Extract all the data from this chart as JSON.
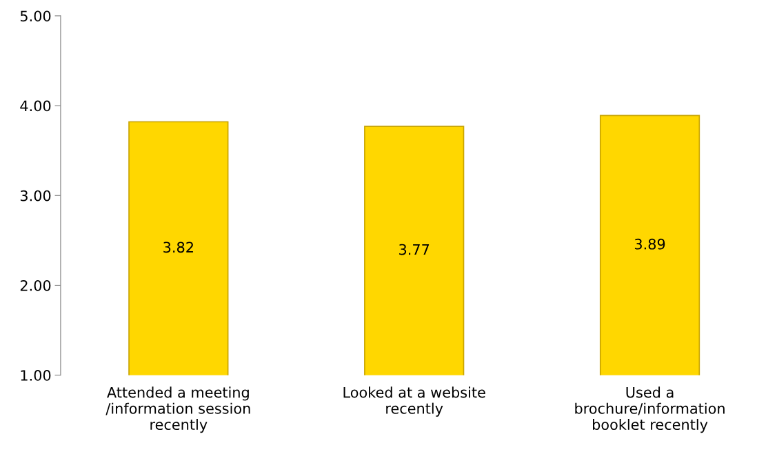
{
  "chart_data": {
    "type": "bar",
    "categories": [
      "Attended a meeting\n/information session\nrecently",
      "Looked at a website\nrecently",
      "Used a\nbrochure/information\nbooklet recently"
    ],
    "values": [
      3.82,
      3.77,
      3.89
    ],
    "color": "#ffd700",
    "ylim": [
      1,
      5
    ],
    "yticks": [
      {
        "value": 1,
        "label": "1.00"
      },
      {
        "value": 2,
        "label": "2.00"
      },
      {
        "value": 3,
        "label": "3.00"
      },
      {
        "value": 4,
        "label": "4.00"
      },
      {
        "value": 5,
        "label": "5.00"
      }
    ],
    "data_labels": true,
    "grid": false,
    "legend": false
  }
}
